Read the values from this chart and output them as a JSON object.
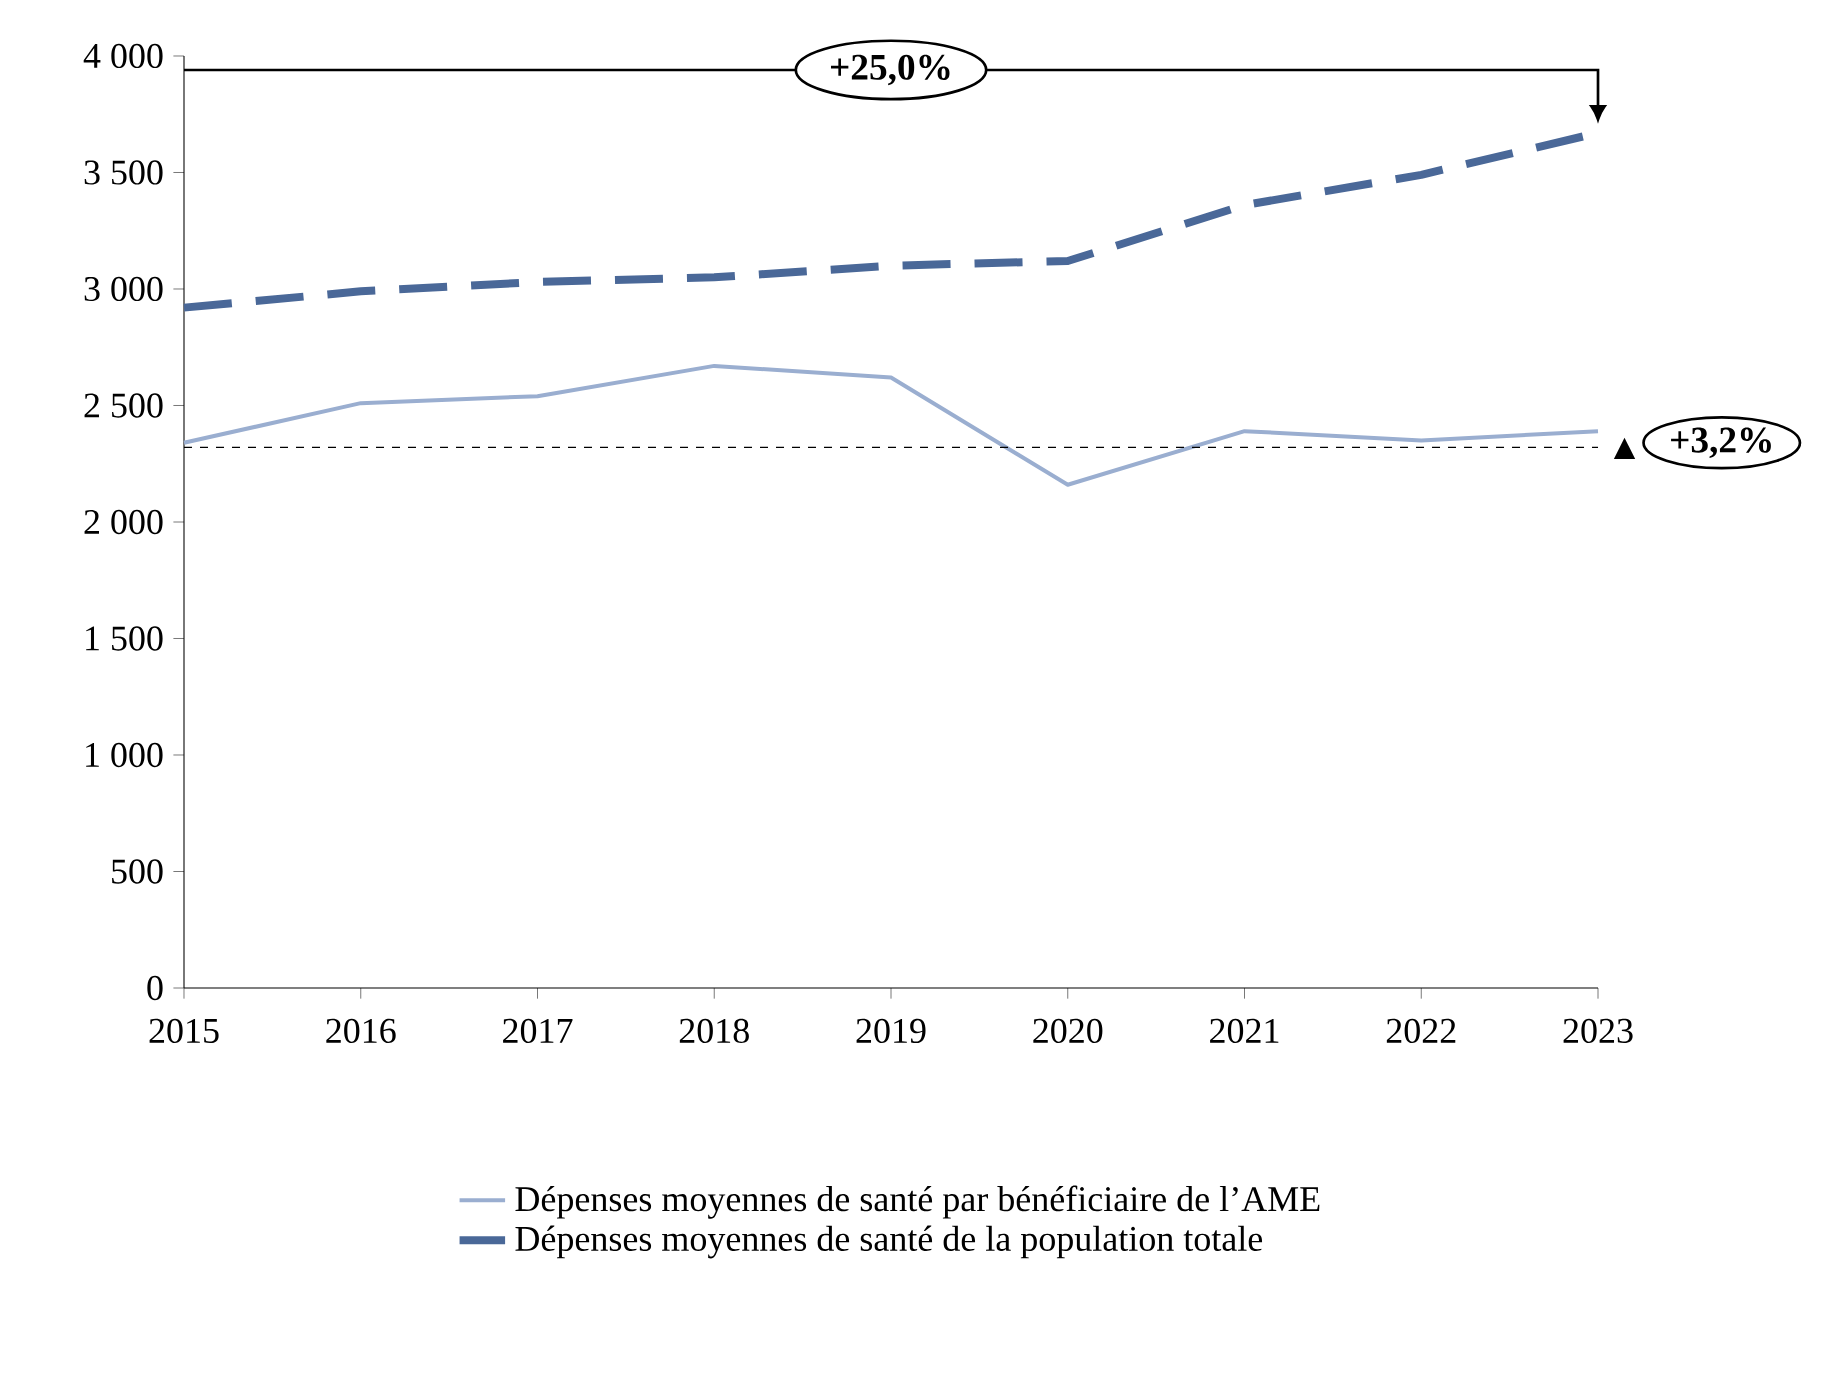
{
  "chart_data": {
    "type": "line",
    "x": [
      2015,
      2016,
      2017,
      2018,
      2019,
      2020,
      2021,
      2022,
      2023
    ],
    "series": [
      {
        "name": "Dépenses moyennes de santé par bénéficiaire de l’AME",
        "color": "#9aaed0",
        "line_style": "solid",
        "values": [
          2340,
          2510,
          2540,
          2670,
          2620,
          2160,
          2390,
          2350,
          2390
        ]
      },
      {
        "name": "Dépenses moyennes de santé de la population totale",
        "color": "#4a6898",
        "line_style": "dashed",
        "values": [
          2920,
          2990,
          3030,
          3050,
          3100,
          3120,
          3360,
          3490,
          3670
        ]
      }
    ],
    "xlim": [
      2015,
      2023
    ],
    "xticks": [
      2015,
      2016,
      2017,
      2018,
      2019,
      2020,
      2021,
      2022,
      2023
    ],
    "ylim": [
      0,
      4000
    ],
    "yticks": [
      0,
      500,
      {
        "value": 1000,
        "label": "1 000"
      },
      {
        "value": 1500,
        "label": "1 500"
      },
      {
        "value": 2000,
        "label": "2 000"
      },
      {
        "value": 2500,
        "label": "2 500"
      },
      {
        "value": 3000,
        "label": "3 000"
      },
      {
        "value": 3500,
        "label": "3 500"
      },
      {
        "value": 4000,
        "label": "4 000"
      }
    ],
    "ref_lines": [
      {
        "axis": "y",
        "value": 2320,
        "color": "#000000",
        "line_style": "dashed"
      }
    ],
    "annotations": [
      "+25,0%",
      "+3,2%"
    ],
    "grid": false,
    "legend": "bottom",
    "marker": "none"
  }
}
